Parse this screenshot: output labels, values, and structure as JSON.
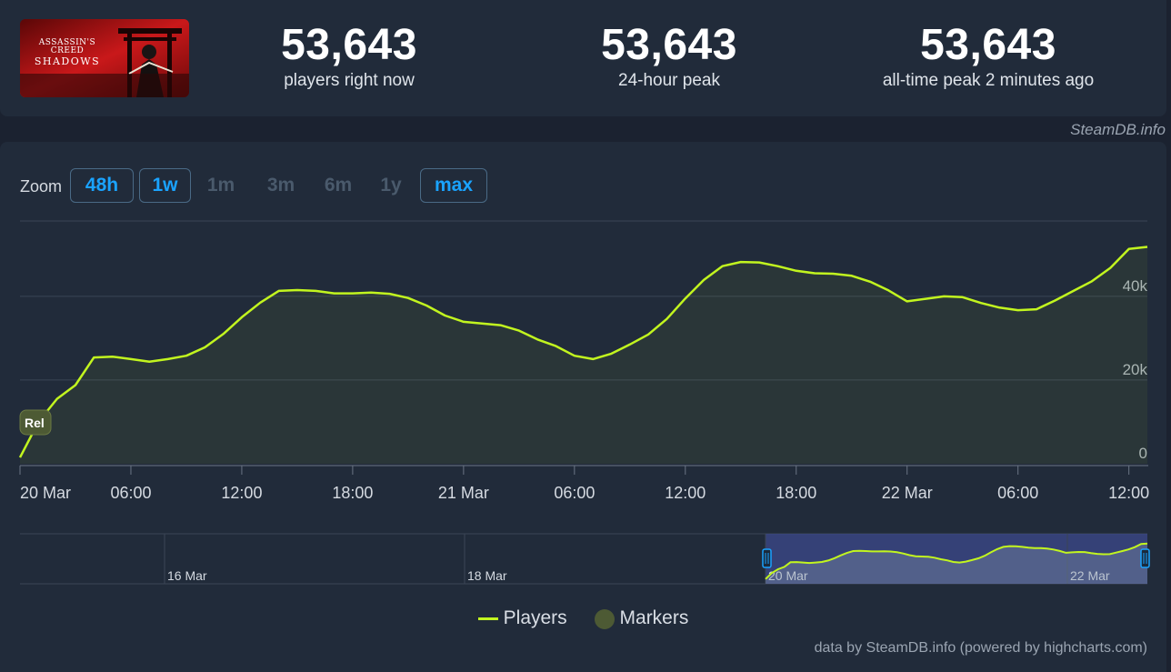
{
  "header": {
    "cover": {
      "line1": "ASSASSIN'S CREED",
      "line2": "SHADOWS"
    },
    "stats": [
      {
        "value": "53,643",
        "label": "players right now"
      },
      {
        "value": "53,643",
        "label": "24-hour peak"
      },
      {
        "value": "53,643",
        "label": "all-time peak 2 minutes ago"
      }
    ],
    "credit": "SteamDB.info"
  },
  "zoom": {
    "label": "Zoom",
    "buttons": [
      {
        "label": "48h",
        "active": true
      },
      {
        "label": "1w",
        "active": true
      },
      {
        "label": "1m",
        "active": false
      },
      {
        "label": "3m",
        "active": false
      },
      {
        "label": "6m",
        "active": false
      },
      {
        "label": "1y",
        "active": false
      },
      {
        "label": "max",
        "active": true
      }
    ]
  },
  "chart_data": {
    "type": "line",
    "x_start": "20 Mar 00:00",
    "x_step_hours": 1,
    "x_ticks": [
      "20 Mar",
      "06:00",
      "12:00",
      "18:00",
      "21 Mar",
      "06:00",
      "12:00",
      "18:00",
      "22 Mar",
      "06:00",
      "12:00"
    ],
    "y_ticks": [
      "0",
      "20k",
      "40k"
    ],
    "ylim": [
      0,
      58000
    ],
    "grid": true,
    "line_color": "#c2f51f",
    "marker_label": "Rel",
    "marker_value": 10000,
    "series": [
      {
        "name": "Players",
        "values": [
          1500,
          10000,
          15500,
          18800,
          25400,
          25600,
          25000,
          24400,
          25000,
          25800,
          27800,
          31000,
          35000,
          38500,
          41300,
          41500,
          41300,
          40700,
          40700,
          40900,
          40600,
          39600,
          37800,
          35400,
          33900,
          33500,
          33100,
          31800,
          29700,
          28100,
          25800,
          25000,
          26300,
          28500,
          30900,
          34600,
          39500,
          43900,
          47200,
          48200,
          48100,
          47200,
          46100,
          45500,
          45400,
          44900,
          43500,
          41400,
          38800,
          39400,
          40000,
          39800,
          38400,
          37300,
          36700,
          36900,
          39000,
          41300,
          43600,
          46800,
          51300,
          51800
        ]
      }
    ],
    "navigator": {
      "labels": [
        "16 Mar",
        "18 Mar",
        "20 Mar",
        "22 Mar"
      ]
    },
    "legend": [
      {
        "name": "Players",
        "color": "#c2f51f"
      },
      {
        "name": "Markers",
        "color": "#4d5a34"
      }
    ],
    "legend_position": "bottom-center"
  },
  "footer": "data by SteamDB.info (powered by highcharts.com)"
}
